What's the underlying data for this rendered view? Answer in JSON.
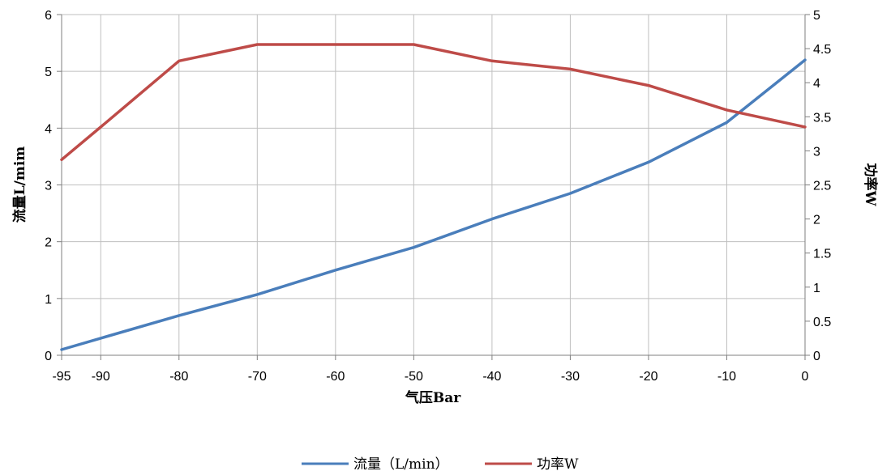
{
  "chart_data": {
    "type": "line",
    "xlabel": "气压Bar",
    "ylabel_left": "流量L/mim",
    "ylabel_right": "功率W",
    "x": [
      -95,
      -90,
      -80,
      -70,
      -60,
      -50,
      -40,
      -30,
      -20,
      -10,
      0
    ],
    "x_ticks": [
      "-95",
      "-90",
      "-80",
      "-70",
      "-60",
      "-50",
      "-40",
      "-30",
      "-20",
      "-10",
      "0"
    ],
    "ylim_left": [
      0,
      6
    ],
    "ylim_right": [
      0,
      5
    ],
    "y_ticks_left": [
      "0",
      "1",
      "2",
      "3",
      "4",
      "5",
      "6"
    ],
    "y_ticks_right": [
      "0",
      "0.5",
      "1",
      "1.5",
      "2",
      "2.5",
      "3",
      "3.5",
      "4",
      "4.5",
      "5"
    ],
    "grid": true,
    "legend_position": "bottom",
    "series": [
      {
        "name": "流量（L/min）",
        "axis": "left",
        "color": "#4a7ebb",
        "values": [
          0.1,
          0.3,
          0.7,
          1.07,
          1.5,
          1.9,
          2.4,
          2.85,
          3.4,
          4.1,
          5.2
        ]
      },
      {
        "name": "功率W",
        "axis": "right",
        "color": "#be4b48",
        "values": [
          2.87,
          3.35,
          4.32,
          4.56,
          4.56,
          4.56,
          4.32,
          4.2,
          3.96,
          3.6,
          3.35
        ]
      }
    ]
  }
}
